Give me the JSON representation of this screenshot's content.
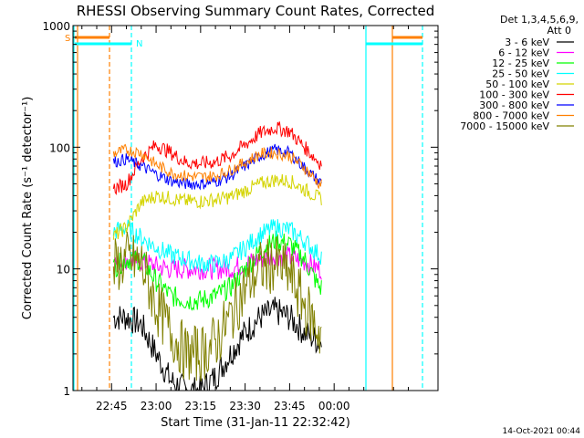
{
  "chart_data": {
    "type": "line",
    "title": "RHESSI Observing Summary Count Rates, Corrected",
    "ylabel": "Corrected Count Rate (s⁻¹ detector⁻¹)",
    "xlabel": "Start Time (31-Jan-11 22:32:42)",
    "y_scale": "log",
    "ylim": [
      1,
      1000
    ],
    "y_ticks": [
      {
        "value": 1,
        "label": "1"
      },
      {
        "value": 10,
        "label": "10"
      },
      {
        "value": 100,
        "label": "100"
      },
      {
        "value": 1000,
        "label": "1000"
      }
    ],
    "xlim": [
      "22:32",
      "00:35"
    ],
    "x_ticks": [
      "22:45",
      "23:00",
      "23:15",
      "23:30",
      "23:45",
      "00:00"
    ],
    "legend": {
      "placement": "right",
      "header": [
        "Det 1,3,4,5,6,9,",
        "Att 0"
      ]
    },
    "series": [
      {
        "name": "3 - 6 keV",
        "color": "#000000",
        "x": [
          "22:45",
          "22:50",
          "22:55",
          "23:00",
          "23:05",
          "23:10",
          "23:15",
          "23:20",
          "23:25",
          "23:30",
          "23:35",
          "23:40",
          "23:45",
          "23:50",
          "23:55"
        ],
        "values": [
          4,
          4,
          3.5,
          2,
          1.2,
          1,
          1,
          1.3,
          2,
          3,
          4,
          4.5,
          4,
          3,
          2.5
        ]
      },
      {
        "name": "6 - 12 keV",
        "color": "#ff00ff",
        "x": [
          "22:45",
          "22:50",
          "22:55",
          "23:00",
          "23:05",
          "23:10",
          "23:15",
          "23:20",
          "23:25",
          "23:30",
          "23:35",
          "23:40",
          "23:45",
          "23:50",
          "23:55"
        ],
        "values": [
          11,
          12,
          11.5,
          10.5,
          10,
          10,
          10,
          10,
          10,
          11,
          12,
          13,
          12.5,
          11.5,
          10
        ]
      },
      {
        "name": "12 - 25 keV",
        "color": "#00ff00",
        "x": [
          "22:45",
          "22:50",
          "22:55",
          "23:00",
          "23:05",
          "23:10",
          "23:15",
          "23:20",
          "23:25",
          "23:30",
          "23:35",
          "23:40",
          "23:45",
          "23:50",
          "23:55"
        ],
        "values": [
          10,
          12,
          12,
          8,
          6,
          5.5,
          5.5,
          6,
          7,
          10,
          14,
          17,
          16,
          12,
          7
        ]
      },
      {
        "name": "25 - 50 keV",
        "color": "#00ffff",
        "x": [
          "22:45",
          "22:50",
          "22:55",
          "23:00",
          "23:05",
          "23:10",
          "23:15",
          "23:20",
          "23:25",
          "23:30",
          "23:35",
          "23:40",
          "23:45",
          "23:50",
          "23:55"
        ],
        "values": [
          20,
          22,
          18,
          15,
          13,
          12,
          11,
          11,
          12,
          15,
          19,
          22,
          21,
          17,
          13
        ]
      },
      {
        "name": "50 - 100 keV",
        "color": "#d4d400",
        "x": [
          "22:45",
          "22:50",
          "22:55",
          "23:00",
          "23:05",
          "23:10",
          "23:15",
          "23:20",
          "23:25",
          "23:30",
          "23:35",
          "23:40",
          "23:45",
          "23:50",
          "23:55"
        ],
        "values": [
          18,
          22,
          35,
          40,
          38,
          36,
          36,
          37,
          39,
          44,
          50,
          54,
          53,
          45,
          38
        ]
      },
      {
        "name": "100 - 300 keV",
        "color": "#ff0000",
        "x": [
          "22:45",
          "22:50",
          "22:55",
          "23:00",
          "23:05",
          "23:10",
          "23:15",
          "23:20",
          "23:25",
          "23:30",
          "23:35",
          "23:40",
          "23:45",
          "23:50",
          "23:55"
        ],
        "values": [
          45,
          50,
          80,
          105,
          90,
          75,
          73,
          76,
          85,
          105,
          130,
          145,
          135,
          100,
          75
        ]
      },
      {
        "name": "300 - 800 keV",
        "color": "#0000ff",
        "x": [
          "22:45",
          "22:50",
          "22:55",
          "23:00",
          "23:05",
          "23:10",
          "23:15",
          "23:20",
          "23:25",
          "23:30",
          "23:35",
          "23:40",
          "23:45",
          "23:50",
          "23:55"
        ],
        "values": [
          75,
          80,
          70,
          60,
          53,
          50,
          50,
          52,
          58,
          70,
          85,
          95,
          90,
          68,
          52
        ]
      },
      {
        "name": "800 - 7000 keV",
        "color": "#ff8000",
        "x": [
          "22:45",
          "22:50",
          "22:55",
          "23:00",
          "23:05",
          "23:10",
          "23:15",
          "23:20",
          "23:25",
          "23:30",
          "23:35",
          "23:40",
          "23:45",
          "23:50",
          "23:55"
        ],
        "values": [
          88,
          95,
          90,
          72,
          62,
          58,
          57,
          58,
          65,
          75,
          88,
          90,
          85,
          68,
          50
        ]
      },
      {
        "name": "7000 - 15000 keV",
        "color": "#808000",
        "x": [
          "22:45",
          "22:50",
          "22:55",
          "23:00",
          "23:05",
          "23:10",
          "23:15",
          "23:20",
          "23:25",
          "23:30",
          "23:35",
          "23:40",
          "23:45",
          "23:50",
          "23:55"
        ],
        "values": [
          10,
          12,
          11,
          5,
          3,
          2,
          2,
          2.5,
          4,
          7,
          10,
          11,
          9,
          5,
          3
        ]
      }
    ],
    "annotations": [
      {
        "label": "S",
        "color": "#ff8000"
      },
      {
        "label": "N",
        "color": "#00ffff"
      }
    ],
    "footer": "14-Oct-2021 00:44"
  }
}
